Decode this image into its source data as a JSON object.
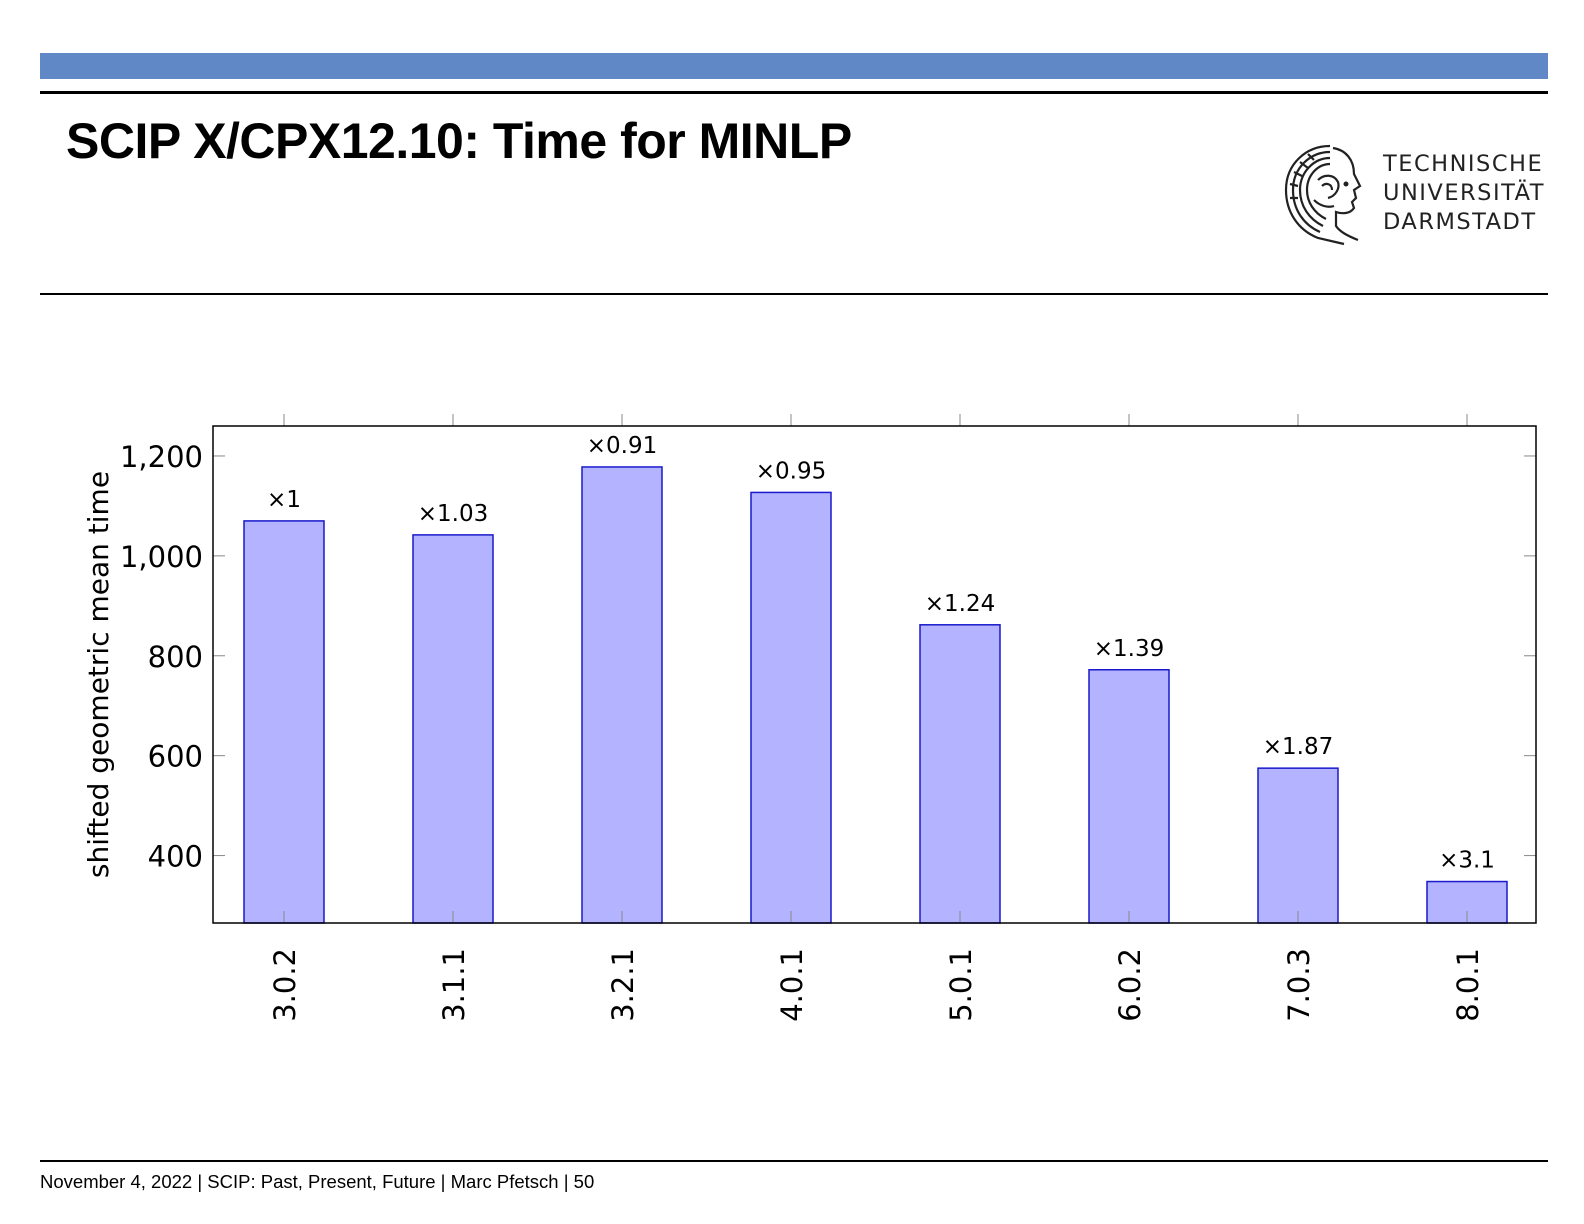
{
  "slide": {
    "title": "SCIP X/CPX12.10: Time for MINLP",
    "footer": "November 4, 2022 | SCIP: Past, Present, Future | Marc Pfetsch | 50"
  },
  "logo": {
    "name": "tu-darmstadt-athena-logo",
    "lines": [
      "TECHNISCHE",
      "UNIVERSITÄT",
      "DARMSTADT"
    ]
  },
  "colors": {
    "band": "#6088c6",
    "bar_fill": "#b3b3ff",
    "bar_stroke": "#1a1acc"
  },
  "chart_data": {
    "type": "bar",
    "title": "",
    "xlabel": "",
    "ylabel": "shifted geometric mean time",
    "categories": [
      "3.0.2",
      "3.1.1",
      "3.2.1",
      "4.0.1",
      "5.0.1",
      "6.0.2",
      "7.0.3",
      "8.0.1"
    ],
    "values": [
      1070,
      1042,
      1178,
      1127,
      862,
      772,
      575,
      348
    ],
    "data_labels": [
      "×1",
      "×1.03",
      "×0.91",
      "×0.95",
      "×1.24",
      "×1.39",
      "×1.87",
      "×3.1"
    ],
    "ylim": [
      265,
      1260
    ],
    "yticks": [
      400,
      600,
      800,
      1000,
      1200
    ],
    "ytick_labels": [
      "400",
      "600",
      "800",
      "1,000",
      "1,200"
    ],
    "grid": false,
    "legend": "none"
  }
}
